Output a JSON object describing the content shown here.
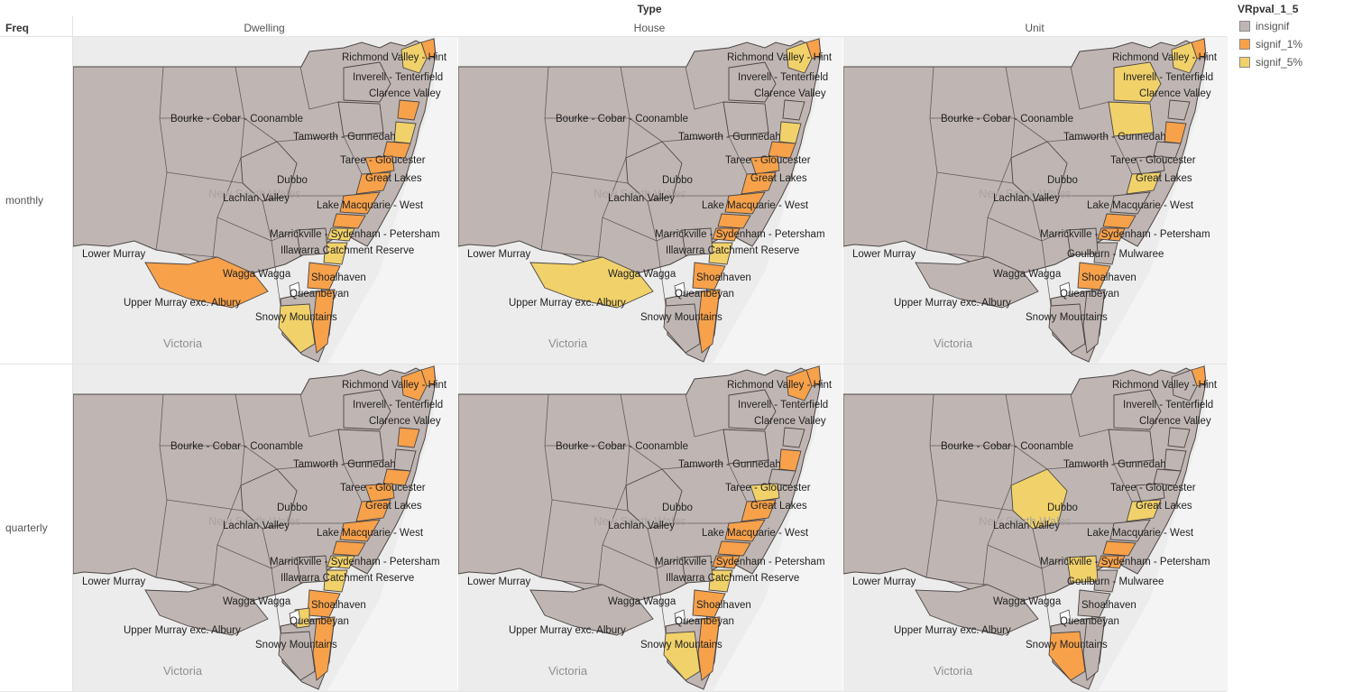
{
  "header": {
    "column_dim": "Type",
    "row_dim": "Freq"
  },
  "columns": [
    "Dwelling",
    "House",
    "Unit"
  ],
  "rows": [
    "monthly",
    "quarterly"
  ],
  "legend": {
    "title": "VRpval_1_5",
    "items": [
      {
        "label": "insignif",
        "color": "#bfb6b3"
      },
      {
        "label": "signif_1%",
        "color": "#f7a14a"
      },
      {
        "label": "signif_5%",
        "color": "#f1d26a"
      }
    ]
  },
  "colors": {
    "insignif": "#bfb6b3",
    "signif_1": "#f7a14a",
    "signif_5": "#f1d26a",
    "border": "#4a4545",
    "background": "#ececec",
    "water": "#f4f4f4"
  },
  "map_labels": [
    "Richmond Valley - Hint",
    "Inverell - Tenterfield",
    "Clarence Valley",
    "Bourke - Cobar - Coonamble",
    "Tamworth - Gunnedah",
    "Taree - Gloucester",
    "Dubbo",
    "Great Lakes",
    "Lachlan Valley",
    "Lake Macquarie - West",
    "Marrickville - Sydenham - Petersham",
    "Illawarra Catchment Reserve",
    "Goulburn - Mulwaree",
    "Lower Murray",
    "Wagga Wagga",
    "Shoalhaven",
    "Upper Murray exc. Albury",
    "Queanbeyan",
    "Snowy Mountains",
    "Victoria",
    "New South Wales"
  ],
  "panels": [
    {
      "row": "monthly",
      "col": "Dwelling",
      "labels": [
        "Richmond Valley - Hint",
        "Inverell - Tenterfield",
        "Clarence Valley",
        "Bourke - Cobar - Coonamble",
        "Tamworth - Gunnedah",
        "Taree - Gloucester",
        "Dubbo",
        "Great Lakes",
        "Lachlan Valley",
        "Lake Macquarie - West",
        "Marrickville - Sydenham - Petersham",
        "Illawarra Catchment Reserve",
        "Lower Murray",
        "Wagga Wagga",
        "Shoalhaven",
        "Upper Murray exc. Albury",
        "Queanbeyan",
        "Snowy Mountains",
        "Victoria"
      ],
      "regions": {
        "richmond_valley": "signif_5",
        "northern_tip": "signif_1",
        "clarence_valley": "signif_1",
        "mid_north_coast": "signif_5",
        "port_macquarie": "signif_1",
        "taree_gloucester": "signif_1",
        "great_lakes": "signif_1",
        "hunter_coast": "signif_1",
        "central_coast": "signif_1",
        "sydney": "signif_5",
        "illawarra": "signif_5",
        "shoalhaven": "signif_1",
        "south_coast": "signif_1",
        "snowy_mountains": "signif_5",
        "upper_murray": "signif_1",
        "inverell": "insignif",
        "tamworth": "insignif",
        "dubbo": "insignif",
        "goulburn": "insignif"
      }
    },
    {
      "row": "monthly",
      "col": "House",
      "labels": [
        "Richmond Valley - Hint",
        "Inverell - Tenterfield",
        "Clarence Valley",
        "Bourke - Cobar - Coonamble",
        "Tamworth - Gunnedah",
        "Taree - Gloucester",
        "Dubbo",
        "Great Lakes",
        "Lachlan Valley",
        "Lake Macquarie - West",
        "Marrickville - Sydenham - Petersham",
        "Illawarra Catchment Reserve",
        "Lower Murray",
        "Wagga Wagga",
        "Shoalhaven",
        "Upper Murray exc. Albury",
        "Queanbeyan",
        "Snowy Mountains",
        "Victoria"
      ],
      "regions": {
        "richmond_valley": "signif_5",
        "northern_tip": "signif_1",
        "clarence_valley": "insignif",
        "mid_north_coast": "signif_5",
        "port_macquarie": "signif_1",
        "taree_gloucester": "signif_1",
        "great_lakes": "signif_1",
        "hunter_coast": "signif_1",
        "central_coast": "signif_1",
        "sydney": "signif_1",
        "illawarra": "signif_5",
        "shoalhaven": "signif_1",
        "south_coast": "signif_1",
        "snowy_mountains": "insignif",
        "upper_murray": "signif_5",
        "inverell": "insignif",
        "tamworth": "insignif",
        "dubbo": "insignif",
        "goulburn": "insignif"
      }
    },
    {
      "row": "monthly",
      "col": "Unit",
      "labels": [
        "Richmond Valley - Hint",
        "Inverell - Tenterfield",
        "Clarence Valley",
        "Bourke - Cobar - Coonamble",
        "Tamworth - Gunnedah",
        "Taree - Gloucester",
        "Dubbo",
        "Great Lakes",
        "Lachlan Valley",
        "Lake Macquarie - West",
        "Marrickville - Sydenham - Petersham",
        "Goulburn - Mulwaree",
        "Lower Murray",
        "Wagga Wagga",
        "Shoalhaven",
        "Upper Murray exc. Albury",
        "Queanbeyan",
        "Snowy Mountains",
        "Victoria"
      ],
      "regions": {
        "richmond_valley": "signif_5",
        "northern_tip": "signif_1",
        "clarence_valley": "insignif",
        "mid_north_coast": "signif_1",
        "port_macquarie": "insignif",
        "taree_gloucester": "insignif",
        "great_lakes": "signif_5",
        "hunter_coast": "insignif",
        "central_coast": "signif_1",
        "sydney": "signif_1",
        "illawarra": "insignif",
        "shoalhaven": "signif_1",
        "south_coast": "insignif",
        "snowy_mountains": "insignif",
        "upper_murray": "insignif",
        "inverell": "signif_5",
        "tamworth": "signif_5",
        "dubbo": "insignif",
        "goulburn": "insignif"
      }
    },
    {
      "row": "quarterly",
      "col": "Dwelling",
      "labels": [
        "Richmond Valley - Hint",
        "Inverell - Tenterfield",
        "Clarence Valley",
        "Bourke - Cobar - Coonamble",
        "Tamworth - Gunnedah",
        "Taree - Gloucester",
        "Dubbo",
        "Great Lakes",
        "Lachlan Valley",
        "Lake Macquarie - West",
        "Marrickville - Sydenham - Petersham",
        "Illawarra Catchment Reserve",
        "Lower Murray",
        "Wagga Wagga",
        "Shoalhaven",
        "Upper Murray exc. Albury",
        "Queanbeyan",
        "Snowy Mountains",
        "Victoria"
      ],
      "regions": {
        "richmond_valley": "signif_1",
        "northern_tip": "signif_1",
        "clarence_valley": "signif_1",
        "mid_north_coast": "insignif",
        "port_macquarie": "signif_1",
        "taree_gloucester": "signif_1",
        "great_lakes": "signif_1",
        "hunter_coast": "signif_1",
        "central_coast": "signif_1",
        "sydney": "signif_5",
        "illawarra": "signif_5",
        "shoalhaven": "signif_1",
        "south_coast": "signif_1",
        "snowy_mountains": "insignif",
        "upper_murray": "insignif",
        "inverell": "insignif",
        "tamworth": "insignif",
        "dubbo": "insignif",
        "goulburn": "insignif",
        "queanbeyan": "signif_5"
      }
    },
    {
      "row": "quarterly",
      "col": "House",
      "labels": [
        "Richmond Valley - Hint",
        "Inverell - Tenterfield",
        "Clarence Valley",
        "Bourke - Cobar - Coonamble",
        "Tamworth - Gunnedah",
        "Taree - Gloucester",
        "Dubbo",
        "Great Lakes",
        "Lachlan Valley",
        "Lake Macquarie - West",
        "Marrickville - Sydenham - Petersham",
        "Illawarra Catchment Reserve",
        "Lower Murray",
        "Wagga Wagga",
        "Shoalhaven",
        "Upper Murray exc. Albury",
        "Queanbeyan",
        "Snowy Mountains",
        "Victoria"
      ],
      "regions": {
        "richmond_valley": "signif_1",
        "northern_tip": "signif_1",
        "clarence_valley": "insignif",
        "mid_north_coast": "signif_1",
        "port_macquarie": "insignif",
        "taree_gloucester": "signif_5",
        "great_lakes": "signif_1",
        "hunter_coast": "signif_1",
        "central_coast": "signif_1",
        "sydney": "signif_1",
        "illawarra": "signif_5",
        "shoalhaven": "signif_1",
        "south_coast": "signif_1",
        "snowy_mountains": "signif_5",
        "upper_murray": "insignif",
        "inverell": "insignif",
        "tamworth": "insignif",
        "dubbo": "insignif",
        "goulburn": "insignif"
      }
    },
    {
      "row": "quarterly",
      "col": "Unit",
      "labels": [
        "Richmond Valley - Hint",
        "Inverell - Tenterfield",
        "Clarence Valley",
        "Bourke - Cobar - Coonamble",
        "Tamworth - Gunnedah",
        "Taree - Gloucester",
        "Dubbo",
        "Great Lakes",
        "Lachlan Valley",
        "Lake Macquarie - West",
        "Marrickville - Sydenham - Petersham",
        "Goulburn - Mulwaree",
        "Lower Murray",
        "Wagga Wagga",
        "Shoalhaven",
        "Upper Murray exc. Albury",
        "Queanbeyan",
        "Snowy Mountains",
        "Victoria"
      ],
      "regions": {
        "richmond_valley": "insignif",
        "northern_tip": "signif_1",
        "clarence_valley": "insignif",
        "mid_north_coast": "insignif",
        "port_macquarie": "insignif",
        "taree_gloucester": "insignif",
        "great_lakes": "signif_5",
        "hunter_coast": "insignif",
        "central_coast": "signif_1",
        "sydney": "signif_1",
        "illawarra": "insignif",
        "shoalhaven": "insignif",
        "south_coast": "insignif",
        "snowy_mountains": "signif_1",
        "upper_murray": "insignif",
        "inverell": "insignif",
        "tamworth": "insignif",
        "dubbo": "signif_5",
        "goulburn": "signif_5"
      }
    }
  ]
}
